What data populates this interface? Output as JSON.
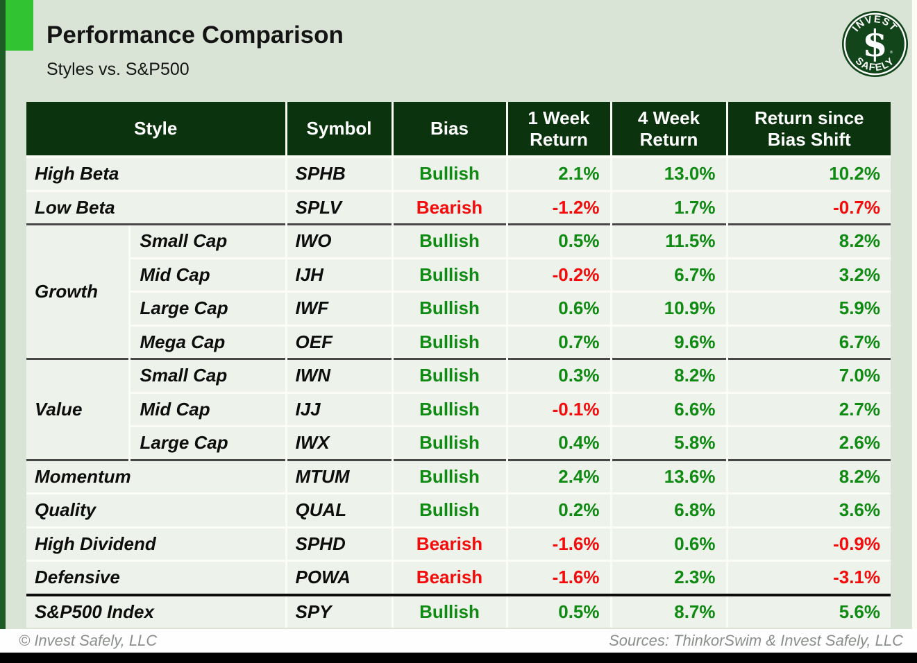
{
  "header": {
    "title": "Performance Comparison",
    "subtitle": "Styles vs. S&P500",
    "logo": {
      "arc_top": "INVEST",
      "arc_bottom": "SAFELY",
      "monogram": "$",
      "registered": "®"
    }
  },
  "table": {
    "columns": [
      "Style",
      "Symbol",
      "Bias",
      "1 Week Return",
      "4 Week Return",
      "Return since Bias Shift"
    ],
    "rows": [
      {
        "style": "High Beta",
        "symbol": "SPHB",
        "bias": "Bullish",
        "week1": "2.1%",
        "week4": "13.0%",
        "since": "10.2%"
      },
      {
        "style": "Low Beta",
        "symbol": "SPLV",
        "bias": "Bearish",
        "week1": "-1.2%",
        "week4": "1.7%",
        "since": "-0.7%"
      },
      {
        "group": "Growth",
        "span": 4,
        "style": "Small Cap",
        "symbol": "IWO",
        "bias": "Bullish",
        "week1": "0.5%",
        "week4": "11.5%",
        "since": "8.2%",
        "sep": "thin"
      },
      {
        "sub": true,
        "style": "Mid Cap",
        "symbol": "IJH",
        "bias": "Bullish",
        "week1": "-0.2%",
        "week4": "6.7%",
        "since": "3.2%"
      },
      {
        "sub": true,
        "style": "Large Cap",
        "symbol": "IWF",
        "bias": "Bullish",
        "week1": "0.6%",
        "week4": "10.9%",
        "since": "5.9%"
      },
      {
        "sub": true,
        "style": "Mega Cap",
        "symbol": "OEF",
        "bias": "Bullish",
        "week1": "0.7%",
        "week4": "9.6%",
        "since": "6.7%"
      },
      {
        "group": "Value",
        "span": 3,
        "style": "Small Cap",
        "symbol": "IWN",
        "bias": "Bullish",
        "week1": "0.3%",
        "week4": "8.2%",
        "since": "7.0%",
        "sep": "thin"
      },
      {
        "sub": true,
        "style": "Mid Cap",
        "symbol": "IJJ",
        "bias": "Bullish",
        "week1": "-0.1%",
        "week4": "6.6%",
        "since": "2.7%"
      },
      {
        "sub": true,
        "style": "Large Cap",
        "symbol": "IWX",
        "bias": "Bullish",
        "week1": "0.4%",
        "week4": "5.8%",
        "since": "2.6%"
      },
      {
        "style": "Momentum",
        "symbol": "MTUM",
        "bias": "Bullish",
        "week1": "2.4%",
        "week4": "13.6%",
        "since": "8.2%",
        "sep": "thin"
      },
      {
        "style": "Quality",
        "symbol": "QUAL",
        "bias": "Bullish",
        "week1": "0.2%",
        "week4": "6.8%",
        "since": "3.6%"
      },
      {
        "style": "High Dividend",
        "symbol": "SPHD",
        "bias": "Bearish",
        "week1": "-1.6%",
        "week4": "0.6%",
        "since": "-0.9%"
      },
      {
        "style": "Defensive",
        "symbol": "POWA",
        "bias": "Bearish",
        "week1": "-1.6%",
        "week4": "2.3%",
        "since": "-3.1%"
      },
      {
        "style": "S&P500 Index",
        "symbol": "SPY",
        "bias": "Bullish",
        "week1": "0.5%",
        "week4": "8.7%",
        "since": "5.6%",
        "sep": "thick"
      }
    ]
  },
  "chart_data": {
    "type": "table",
    "title": "Performance Comparison",
    "subtitle": "Styles vs. S&P500",
    "columns": [
      "Style",
      "Symbol",
      "Bias",
      "1 Week Return",
      "4 Week Return",
      "Return since Bias Shift"
    ],
    "rows": [
      [
        "High Beta",
        "SPHB",
        "Bullish",
        "2.1%",
        "13.0%",
        "10.2%"
      ],
      [
        "Low Beta",
        "SPLV",
        "Bearish",
        "-1.2%",
        "1.7%",
        "-0.7%"
      ],
      [
        "Growth Small Cap",
        "IWO",
        "Bullish",
        "0.5%",
        "11.5%",
        "8.2%"
      ],
      [
        "Growth Mid Cap",
        "IJH",
        "Bullish",
        "-0.2%",
        "6.7%",
        "3.2%"
      ],
      [
        "Growth Large Cap",
        "IWF",
        "Bullish",
        "0.6%",
        "10.9%",
        "5.9%"
      ],
      [
        "Growth Mega Cap",
        "OEF",
        "Bullish",
        "0.7%",
        "9.6%",
        "6.7%"
      ],
      [
        "Value Small Cap",
        "IWN",
        "Bullish",
        "0.3%",
        "8.2%",
        "7.0%"
      ],
      [
        "Value Mid Cap",
        "IJJ",
        "Bullish",
        "-0.1%",
        "6.6%",
        "2.7%"
      ],
      [
        "Value Large Cap",
        "IWX",
        "Bullish",
        "0.4%",
        "5.8%",
        "2.6%"
      ],
      [
        "Momentum",
        "MTUM",
        "Bullish",
        "2.4%",
        "13.6%",
        "8.2%"
      ],
      [
        "Quality",
        "QUAL",
        "Bullish",
        "0.2%",
        "6.8%",
        "3.6%"
      ],
      [
        "High Dividend",
        "SPHD",
        "Bearish",
        "-1.6%",
        "0.6%",
        "-0.9%"
      ],
      [
        "Defensive",
        "POWA",
        "Bearish",
        "-1.6%",
        "2.3%",
        "-3.1%"
      ],
      [
        "S&P500 Index",
        "SPY",
        "Bullish",
        "0.5%",
        "8.7%",
        "5.6%"
      ]
    ]
  },
  "footer": {
    "left": "© Invest Safely, LLC",
    "right": "Sources: ThinkorSwim & Invest Safely, LLC"
  },
  "colors": {
    "page_bg": "#d9e4d6",
    "header_bg": "#0a330e",
    "row_bg": "#edf2ea",
    "positive": "#0f8a12",
    "negative": "#f40b0b",
    "accent": "#32c332",
    "left_bar": "#1d5c24",
    "logo_bg": "#12451a"
  }
}
